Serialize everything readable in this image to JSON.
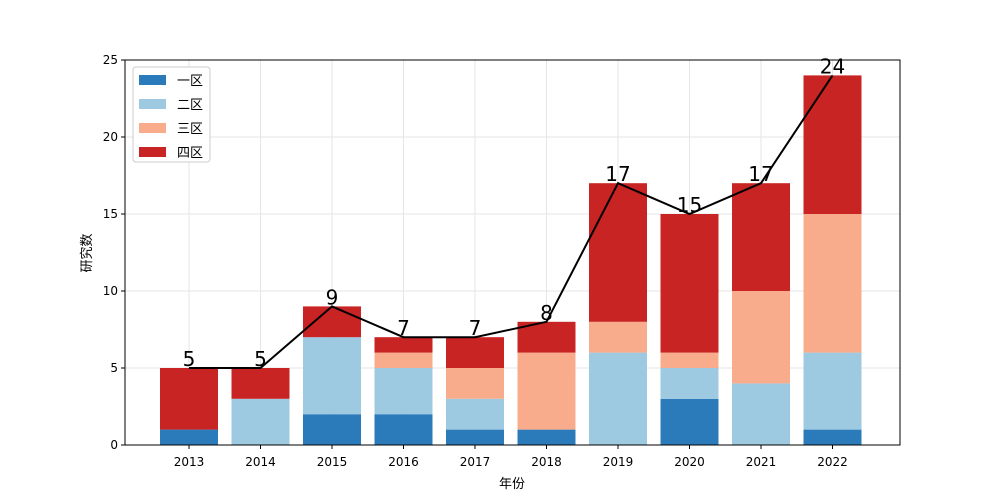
{
  "chart_data": {
    "type": "bar",
    "stacked": true,
    "categories": [
      "2013",
      "2014",
      "2015",
      "2016",
      "2017",
      "2018",
      "2019",
      "2020",
      "2021",
      "2022"
    ],
    "series": [
      {
        "name": "一区",
        "color": "#2b7bba",
        "values": [
          1,
          0,
          2,
          2,
          1,
          1,
          0,
          3,
          0,
          1
        ]
      },
      {
        "name": "二区",
        "color": "#9ecae1",
        "values": [
          0,
          3,
          5,
          3,
          2,
          0,
          6,
          2,
          4,
          5
        ]
      },
      {
        "name": "三区",
        "color": "#f8ac8c",
        "values": [
          0,
          0,
          0,
          1,
          2,
          5,
          2,
          1,
          6,
          9
        ]
      },
      {
        "name": "四区",
        "color": "#c82423",
        "values": [
          4,
          2,
          2,
          1,
          2,
          2,
          9,
          9,
          7,
          9
        ]
      }
    ],
    "totals": [
      5,
      5,
      9,
      7,
      7,
      8,
      17,
      15,
      17,
      24
    ],
    "total_line_color": "#000000",
    "xlabel": "年份",
    "ylabel": "研究数",
    "ylim": [
      0,
      25
    ],
    "yticks": [
      0,
      5,
      10,
      15,
      20,
      25
    ],
    "grid": true,
    "legend_position": "top-left"
  }
}
